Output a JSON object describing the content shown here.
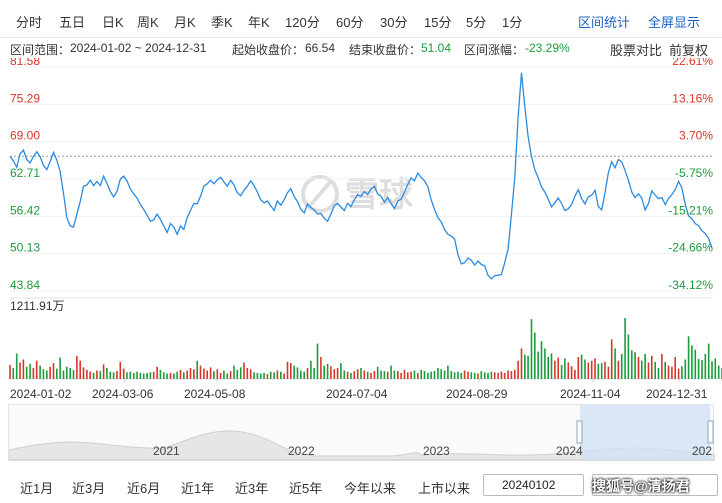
{
  "tabs": [
    "分时",
    "五日",
    "日K",
    "周K",
    "月K",
    "季K",
    "年K",
    "120分",
    "60分",
    "30分",
    "15分",
    "5分",
    "1分"
  ],
  "right_links": [
    "区间统计",
    "全屏显示"
  ],
  "info": {
    "range_label": "区间范围：",
    "range_value": "2024-01-02 ~ 2024-12-31",
    "start_label": "起始收盘价：",
    "start_value": "66.54",
    "end_label": "结束收盘价：",
    "end_value": "51.04",
    "change_label": "区间涨幅：",
    "change_value": "-23.29%",
    "compare": "股票对比",
    "adjust": "前复权"
  },
  "volume_max_label": "1211.91万",
  "watermark": "雪球",
  "colors": {
    "up": "#d8352a",
    "down": "#1b9c3c",
    "line": "#2a8be0",
    "link": "#1a63c4"
  },
  "nav_years": [
    "2021",
    "2022",
    "2023",
    "2024",
    "202"
  ],
  "range_buttons": [
    "近1月",
    "近3月",
    "近6月",
    "近1年",
    "近3年",
    "近5年",
    "今年以来",
    "上市以来"
  ],
  "date_input_value": "20240102",
  "date_input2_value": "",
  "bottom_watermark": "搜狐号@清扬君",
  "chart_data": {
    "type": "line",
    "title": "",
    "y_left_ticks": [
      "81.58",
      "75.29",
      "69.00",
      "62.71",
      "56.42",
      "50.13",
      "43.84"
    ],
    "y_right_ticks": [
      "22.61%",
      "13.16%",
      "3.70%",
      "-5.75%",
      "-15.21%",
      "-24.66%",
      "-34.12%"
    ],
    "x_ticks": [
      "2024-01-02",
      "2024-03-06",
      "2024-05-08",
      "2024-07-04",
      "2024-08-29",
      "2024-11-04",
      "2024-12-31"
    ],
    "ylim": [
      43.84,
      81.58
    ],
    "reference_value": 66.54,
    "price": [
      66.54,
      65.8,
      64.7,
      66.9,
      67.6,
      66.0,
      65.4,
      66.5,
      67.3,
      66.5,
      65.0,
      64.3,
      65.6,
      67.2,
      65.9,
      64.0,
      60.3,
      56.2,
      54.8,
      54.6,
      56.8,
      58.9,
      61.5,
      61.7,
      62.5,
      61.6,
      62.3,
      61.6,
      63.2,
      62.0,
      60.6,
      59.7,
      60.6,
      62.7,
      63.2,
      62.4,
      61.0,
      60.2,
      59.5,
      58.4,
      57.6,
      56.6,
      55.6,
      55.8,
      56.8,
      55.9,
      54.8,
      53.7,
      55.2,
      54.6,
      53.4,
      54.8,
      54.2,
      56.2,
      57.4,
      58.6,
      58.5,
      59.8,
      61.5,
      61.9,
      62.5,
      61.9,
      62.6,
      63.0,
      62.2,
      61.5,
      62.5,
      61.7,
      60.4,
      59.9,
      60.8,
      61.5,
      62.4,
      61.6,
      60.5,
      59.2,
      58.7,
      59.0,
      58.2,
      57.4,
      59.0,
      58.3,
      59.2,
      60.4,
      61.1,
      59.8,
      58.9,
      57.6,
      57.0,
      58.5,
      57.9,
      57.5,
      56.8,
      56.9,
      56.1,
      55.6,
      56.8,
      58.2,
      58.6,
      58.0,
      57.4,
      58.6,
      58.1,
      59.2,
      60.1,
      59.8,
      60.6,
      60.1,
      61.0,
      61.5,
      60.2,
      59.8,
      58.8,
      59.6,
      58.6,
      57.7,
      59.0,
      59.3,
      60.5,
      61.8,
      62.9,
      62.4,
      63.7,
      63.0,
      62.4,
      61.4,
      59.2,
      57.6,
      56.2,
      55.5,
      54.2,
      53.4,
      53.1,
      52.6,
      50.0,
      48.4,
      48.6,
      49.4,
      49.0,
      48.2,
      48.9,
      48.3,
      48.1,
      46.5,
      45.9,
      46.4,
      46.5,
      46.6,
      48.6,
      50.9,
      56.7,
      63.0,
      73.1,
      80.6,
      74.9,
      69.9,
      66.5,
      64.3,
      62.9,
      61.4,
      60.5,
      59.3,
      58.0,
      58.7,
      59.5,
      58.6,
      57.4,
      57.7,
      58.4,
      59.8,
      60.9,
      59.4,
      58.5,
      59.7,
      60.0,
      60.8,
      58.1,
      57.5,
      60.4,
      63.8,
      65.6,
      64.6,
      66.0,
      65.6,
      64.1,
      62.5,
      60.5,
      59.6,
      60.2,
      59.5,
      57.5,
      58.6,
      60.7,
      60.0,
      59.4,
      59.6,
      58.4,
      59.4,
      60.1,
      60.9,
      62.3,
      61.2,
      58.4,
      56.5,
      56.0,
      55.2,
      54.8,
      54.0,
      53.5,
      52.7,
      51.04
    ],
    "volume": [
      0.23,
      0.18,
      0.42,
      0.27,
      0.32,
      0.2,
      0.25,
      0.18,
      0.3,
      0.22,
      0.16,
      0.14,
      0.2,
      0.26,
      0.17,
      0.35,
      0.14,
      0.2,
      0.18,
      0.15,
      0.38,
      0.3,
      0.19,
      0.15,
      0.12,
      0.1,
      0.14,
      0.13,
      0.24,
      0.18,
      0.12,
      0.11,
      0.13,
      0.28,
      0.17,
      0.11,
      0.12,
      0.1,
      0.12,
      0.1,
      0.09,
      0.1,
      0.11,
      0.12,
      0.2,
      0.15,
      0.11,
      0.09,
      0.1,
      0.09,
      0.12,
      0.15,
      0.11,
      0.14,
      0.18,
      0.16,
      0.3,
      0.22,
      0.17,
      0.14,
      0.19,
      0.13,
      0.16,
      0.1,
      0.14,
      0.09,
      0.13,
      0.22,
      0.15,
      0.19,
      0.27,
      0.18,
      0.16,
      0.11,
      0.1,
      0.09,
      0.1,
      0.08,
      0.12,
      0.11,
      0.14,
      0.12,
      0.09,
      0.28,
      0.26,
      0.22,
      0.19,
      0.14,
      0.12,
      0.18,
      0.3,
      0.18,
      0.58,
      0.36,
      0.22,
      0.25,
      0.21,
      0.16,
      0.18,
      0.26,
      0.14,
      0.12,
      0.1,
      0.13,
      0.16,
      0.18,
      0.14,
      0.12,
      0.1,
      0.13,
      0.2,
      0.14,
      0.13,
      0.12,
      0.22,
      0.14,
      0.13,
      0.1,
      0.15,
      0.11,
      0.12,
      0.14,
      0.1,
      0.15,
      0.13,
      0.1,
      0.12,
      0.13,
      0.18,
      0.16,
      0.14,
      0.22,
      0.13,
      0.11,
      0.12,
      0.1,
      0.14,
      0.12,
      0.11,
      0.1,
      0.09,
      0.13,
      0.11,
      0.1,
      0.12,
      0.11,
      0.1,
      0.12,
      0.1,
      0.14,
      0.13,
      0.15,
      0.3,
      0.5,
      0.4,
      0.38,
      0.98,
      0.76,
      0.45,
      0.62,
      0.5,
      0.36,
      0.42,
      0.3,
      0.35,
      0.23,
      0.34,
      0.27,
      0.21,
      0.15,
      0.36,
      0.4,
      0.32,
      0.27,
      0.3,
      0.34,
      0.25,
      0.26,
      0.28,
      0.2,
      0.65,
      0.5,
      0.3,
      0.41,
      1.0,
      0.73,
      0.47,
      0.44,
      0.36,
      0.3,
      0.41,
      0.27,
      0.38,
      0.28,
      0.18,
      0.41,
      0.28,
      0.22,
      0.2,
      0.36,
      0.17,
      0.21,
      0.32,
      0.7,
      0.55,
      0.48,
      0.33,
      0.31,
      0.41,
      0.58,
      0.29,
      0.34,
      0.22,
      0.18
    ]
  }
}
